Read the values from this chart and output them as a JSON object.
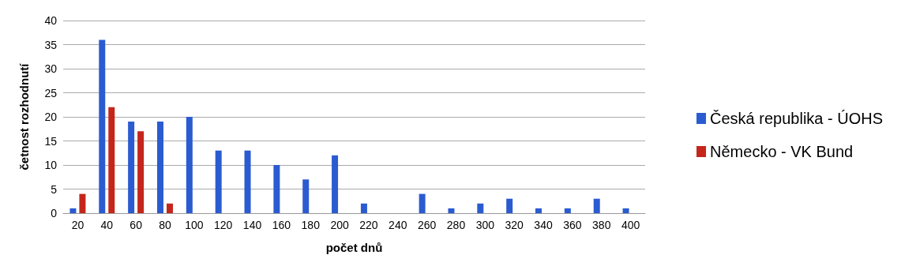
{
  "chart_data": {
    "type": "bar",
    "xlabel": "počet dnů",
    "ylabel": "četnost rozhodnutí",
    "categories": [
      "20",
      "40",
      "60",
      "80",
      "100",
      "120",
      "140",
      "160",
      "180",
      "200",
      "220",
      "240",
      "260",
      "280",
      "300",
      "320",
      "340",
      "360",
      "380",
      "400"
    ],
    "series": [
      {
        "name": "Česká republika - ÚOHS",
        "color": "#2a5bd0",
        "values": [
          1,
          36,
          19,
          19,
          20,
          13,
          13,
          10,
          7,
          12,
          2,
          0,
          4,
          1,
          2,
          3,
          1,
          1,
          3,
          1
        ]
      },
      {
        "name": "Německo - VK Bund",
        "color": "#c4261b",
        "values": [
          4,
          22,
          17,
          2,
          0,
          0,
          0,
          0,
          0,
          0,
          0,
          0,
          0,
          0,
          0,
          0,
          0,
          0,
          0,
          0
        ]
      }
    ],
    "ylim": [
      0,
      40
    ],
    "yticks": [
      0,
      5,
      10,
      15,
      20,
      25,
      30,
      35,
      40
    ],
    "grid": "y",
    "legend": "right"
  }
}
